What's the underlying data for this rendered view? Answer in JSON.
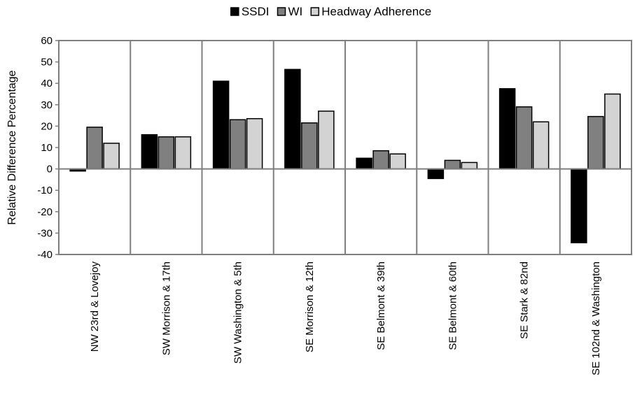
{
  "chart_data": {
    "type": "bar",
    "title": "",
    "xlabel": "",
    "ylabel": "Relative Difference Percentage",
    "ylim": [
      -40,
      60
    ],
    "yticks": [
      60,
      50,
      40,
      30,
      20,
      10,
      0,
      -10,
      -20,
      -30,
      -40
    ],
    "legend_position": "top-center",
    "categories": [
      "NW 23rd & Lovejoy",
      "SW Morrison & 17th",
      "SW Washington & 5th",
      "SE Morrison & 12th",
      "SE Belmont & 39th",
      "SE Belmont & 60th",
      "SE Stark & 82nd",
      "SE 102nd & Washington"
    ],
    "series": [
      {
        "name": "SSDI",
        "color": "#000000",
        "values": [
          -1,
          16,
          41,
          46.5,
          5,
          -4.5,
          37.5,
          -34.5
        ]
      },
      {
        "name": "WI",
        "color": "#808080",
        "values": [
          19.5,
          15,
          23,
          21.5,
          8.5,
          4,
          29,
          24.5
        ]
      },
      {
        "name": "Headway Adherence",
        "color": "#d3d3d3",
        "values": [
          12,
          15,
          23.5,
          27,
          7,
          3,
          22,
          35
        ]
      }
    ]
  }
}
